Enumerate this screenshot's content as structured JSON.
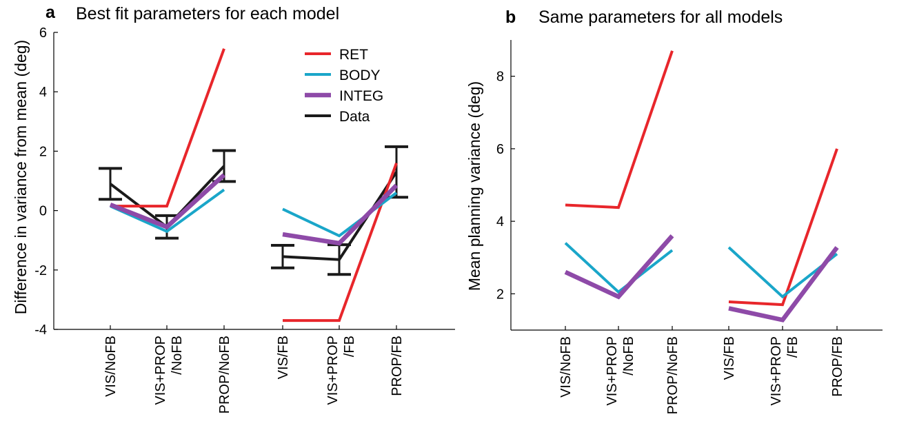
{
  "chart_data": [
    {
      "type": "line",
      "panel_letter": "a",
      "title": "Best fit parameters for each model",
      "ylabel": "Difference in variance from mean (deg)",
      "ylim": [
        -4,
        6
      ],
      "yticks": [
        "-4",
        "-2",
        "0",
        "2",
        "4",
        "6"
      ],
      "ytick_values": [
        -4,
        -2,
        0,
        2,
        4,
        6
      ],
      "categories": [
        {
          "line1": "VIS/NoFB",
          "line2": ""
        },
        {
          "line1": "VIS+PROP",
          "line2": "/NoFB"
        },
        {
          "line1": "PROP/NoFB",
          "line2": ""
        },
        {
          "line1": "VIS/FB",
          "line2": ""
        },
        {
          "line1": "VIS+PROP",
          "line2": "/FB"
        },
        {
          "line1": "PROP/FB",
          "line2": ""
        }
      ],
      "groups": [
        [
          0,
          1,
          2
        ],
        [
          3,
          4,
          5
        ]
      ],
      "legend": {
        "position": "top-right"
      },
      "series": [
        {
          "name": "RET",
          "color": "#e8262b",
          "values": [
            0.15,
            0.15,
            5.45,
            -3.7,
            -3.7,
            1.6
          ]
        },
        {
          "name": "BODY",
          "color": "#1aa6c9",
          "values": [
            0.15,
            -0.7,
            0.7,
            0.05,
            -0.85,
            0.6
          ]
        },
        {
          "name": "INTEG",
          "color": "#8e4aa8",
          "values": [
            0.2,
            -0.55,
            1.2,
            -0.8,
            -1.1,
            0.85
          ]
        },
        {
          "name": "Data",
          "color": "#1a1a1a",
          "values": [
            0.9,
            -0.55,
            1.5,
            -1.55,
            -1.65,
            1.3
          ],
          "errors": [
            0.52,
            0.38,
            0.52,
            0.38,
            0.5,
            0.85
          ]
        }
      ]
    },
    {
      "type": "line",
      "panel_letter": "b",
      "title": "Same parameters for all models",
      "ylabel": "Mean planning variance (deg)",
      "ylim": [
        1,
        9
      ],
      "yticks": [
        "2",
        "4",
        "6",
        "8"
      ],
      "ytick_values": [
        2,
        4,
        6,
        8
      ],
      "categories": [
        {
          "line1": "VIS/NoFB",
          "line2": ""
        },
        {
          "line1": "VIS+PROP",
          "line2": "/NoFB"
        },
        {
          "line1": "PROP/NoFB",
          "line2": ""
        },
        {
          "line1": "VIS/FB",
          "line2": ""
        },
        {
          "line1": "VIS+PROP",
          "line2": "/FB"
        },
        {
          "line1": "PROP/FB",
          "line2": ""
        }
      ],
      "groups": [
        [
          0,
          1,
          2
        ],
        [
          3,
          4,
          5
        ]
      ],
      "series": [
        {
          "name": "RET",
          "color": "#e8262b",
          "values": [
            4.45,
            4.38,
            8.7,
            1.78,
            1.7,
            6.0
          ]
        },
        {
          "name": "BODY",
          "color": "#1aa6c9",
          "values": [
            3.4,
            2.05,
            3.2,
            3.28,
            1.92,
            3.1
          ]
        },
        {
          "name": "INTEG",
          "color": "#8e4aa8",
          "values": [
            2.6,
            1.92,
            3.6,
            1.6,
            1.28,
            3.28
          ]
        }
      ]
    }
  ]
}
